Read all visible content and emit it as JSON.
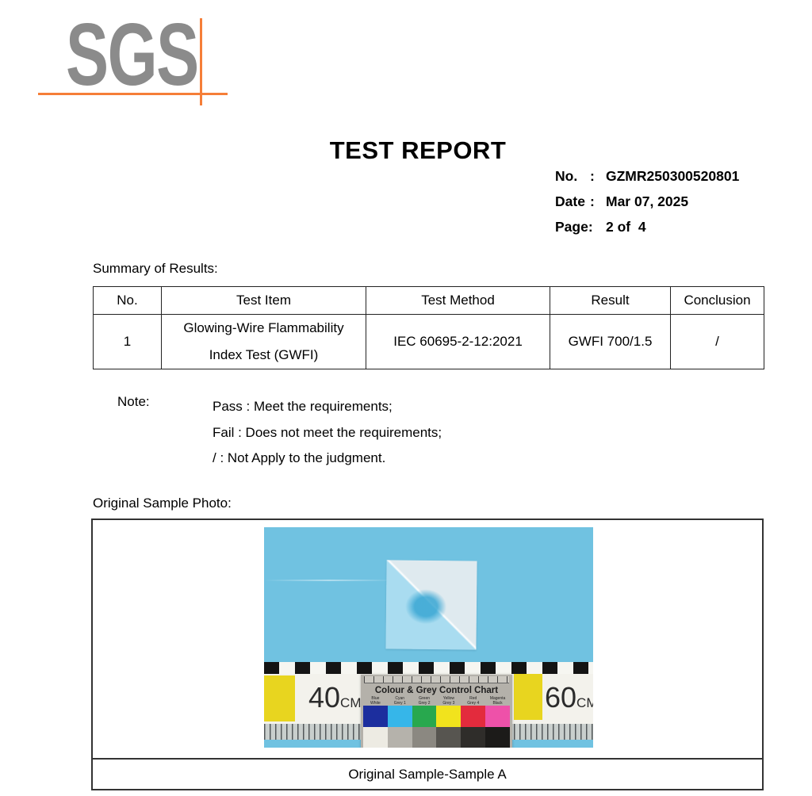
{
  "logo": {
    "text": "SGS",
    "grey": "#8b8b8b",
    "orange": "#f57e38"
  },
  "header": {
    "title": "TEST REPORT",
    "info": [
      {
        "label": "No.",
        "colon": ":",
        "value": "GZMR250300520801"
      },
      {
        "label": "Date",
        "colon": ":",
        "value": "Mar 07, 2025"
      },
      {
        "label": "Page:",
        "colon": "",
        "value": "2 of  4"
      }
    ]
  },
  "summary": {
    "heading": "Summary of Results:",
    "table": {
      "headers": [
        "No.",
        "Test Item",
        "Test Method",
        "Result",
        "Conclusion"
      ],
      "rows": [
        [
          "1",
          "Glowing-Wire Flammability Index Test (GWFI)",
          "IEC 60695-2-12:2021",
          "GWFI 700/1.5",
          "/"
        ]
      ]
    }
  },
  "note": {
    "label": "Note:",
    "lines": [
      "Pass : Meet the requirements;",
      "Fail : Does not meet the requirements;",
      "/ : Not Apply to the judgment."
    ]
  },
  "photo_section": {
    "heading": "Original Sample Photo:",
    "caption": "Original Sample-Sample A",
    "photo": {
      "background": "#70c2e1",
      "ruler": {
        "left_num": "40",
        "left_unit": "CM",
        "right_num": "60",
        "right_unit": "CM"
      },
      "chart_card": {
        "title": "Colour & Grey Control Chart",
        "color_labels": [
          "Blue",
          "Cyan",
          "Green",
          "Yellow",
          "Red",
          "Magenta"
        ],
        "grey_labels": [
          "White",
          "Grey 1",
          "Grey 2",
          "Grey 3",
          "Grey 4",
          "Black"
        ],
        "colors": [
          "#1c2e9e",
          "#36b6e9",
          "#28a84e",
          "#f1e31d",
          "#e32b3d",
          "#ee51a9"
        ],
        "greys": [
          "#edebe3",
          "#b5b2ab",
          "#8b8881",
          "#575550",
          "#2f2d2a",
          "#1c1b19"
        ]
      }
    }
  }
}
